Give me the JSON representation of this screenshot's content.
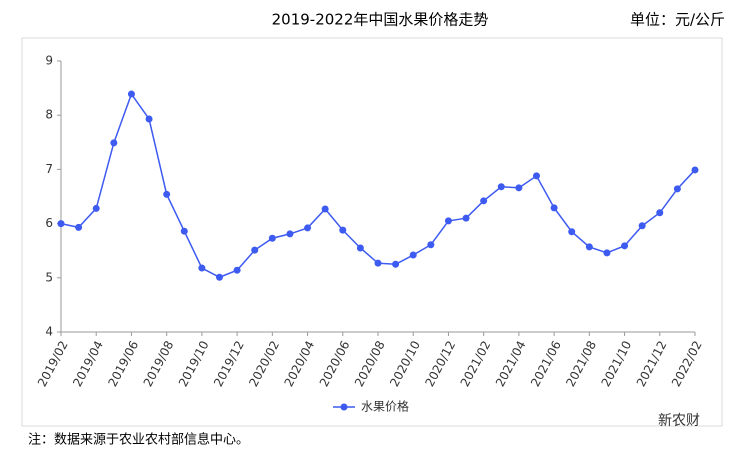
{
  "chart_data": {
    "type": "line",
    "title": "2019-2022年中国水果价格走势",
    "unit_label": "单位：元/公斤",
    "note": "注：数据来源于农业农村部信息中心。",
    "watermark": "新农财",
    "categories": [
      "2019/02",
      null,
      "2019/04",
      null,
      "2019/06",
      null,
      "2019/08",
      null,
      "2019/10",
      null,
      "2019/12",
      null,
      "2020/02",
      null,
      "2020/04",
      null,
      "2020/06",
      null,
      "2020/08",
      null,
      "2020/10",
      null,
      "2020/12",
      null,
      "2021/02",
      null,
      "2021/04",
      null,
      "2021/06",
      null,
      "2021/08",
      null,
      "2021/10",
      null,
      "2021/12",
      null,
      "2022/02"
    ],
    "series": [
      {
        "name": "水果价格",
        "color": "#3d5af1",
        "values": [
          6.0,
          5.93,
          6.28,
          7.49,
          8.39,
          7.93,
          6.54,
          5.86,
          5.18,
          5.01,
          5.14,
          5.51,
          5.73,
          5.81,
          5.92,
          6.27,
          5.88,
          5.55,
          5.27,
          5.25,
          5.42,
          5.61,
          6.05,
          6.1,
          6.42,
          6.68,
          6.66,
          6.88,
          6.29,
          5.85,
          5.57,
          5.46,
          5.59,
          5.96,
          6.2,
          6.64,
          6.99
        ]
      }
    ],
    "ylim": [
      4,
      9
    ],
    "yticks": [
      4,
      5,
      6,
      7,
      8,
      9
    ],
    "grid": false,
    "legend": "bottom"
  }
}
